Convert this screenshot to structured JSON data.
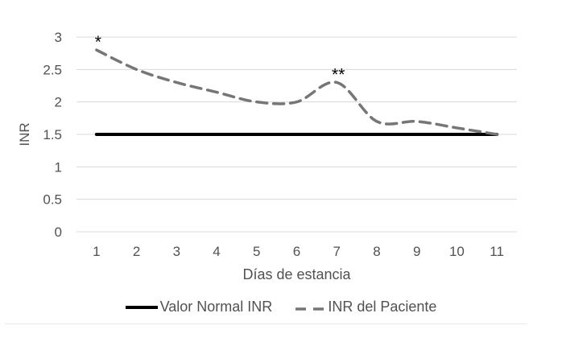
{
  "chart_data": {
    "type": "line",
    "title": "",
    "categories": [
      "1",
      "2",
      "3",
      "4",
      "5",
      "6",
      "7",
      "8",
      "9",
      "10",
      "11"
    ],
    "series": [
      {
        "name": "Valor Normal INR",
        "values": [
          1.5,
          1.5,
          1.5,
          1.5,
          1.5,
          1.5,
          1.5,
          1.5,
          1.5,
          1.5,
          1.5
        ],
        "color": "#000000",
        "width": 4,
        "dash": "",
        "smooth": false
      },
      {
        "name": "INR del Paciente",
        "values": [
          2.8,
          2.5,
          2.3,
          2.15,
          2.0,
          2.0,
          2.3,
          1.7,
          1.7,
          1.6,
          1.5
        ],
        "color": "#767676",
        "width": 3.5,
        "dash": "13 8",
        "smooth": true
      }
    ],
    "xlabel": "Días de estancia",
    "ylabel": "INR",
    "ylim": [
      0,
      3
    ],
    "yticks": [
      0,
      0.5,
      1,
      1.5,
      2,
      2.5,
      3
    ],
    "grid": "horizontal-only",
    "gridline_color": "#d9d9d9",
    "axis_text_color": "#515151",
    "legend_position": "bottom",
    "annotations": [
      {
        "text": "*",
        "category": "1",
        "series_index": 1
      },
      {
        "text": "**",
        "category": "7",
        "series_index": 1
      }
    ]
  }
}
